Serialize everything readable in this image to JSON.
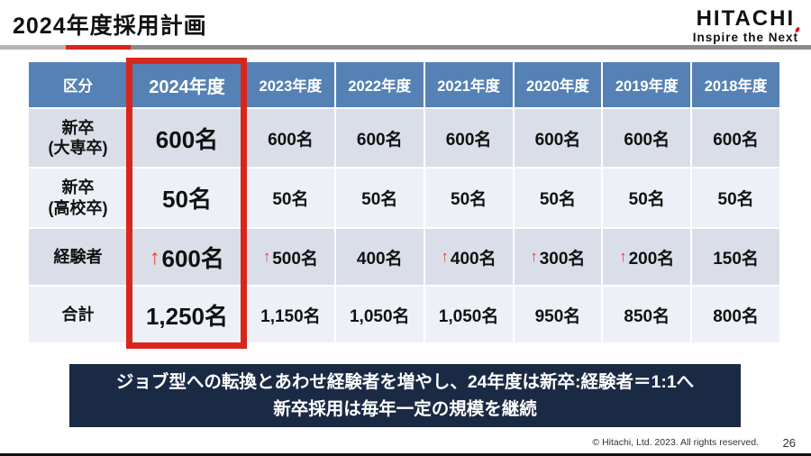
{
  "header": {
    "title": "2024年度採用計画",
    "logo_text": "HITACHI",
    "logo_tagline": "Inspire the Next"
  },
  "table": {
    "columns": [
      "区分",
      "2024年度",
      "2023年度",
      "2022年度",
      "2021年度",
      "2020年度",
      "2019年度",
      "2018年度"
    ],
    "highlighted_column": "2024年度",
    "rows": [
      {
        "label_lines": [
          "新卒",
          "(大専卒)"
        ],
        "values": [
          {
            "text": "600名",
            "arrow": false
          },
          {
            "text": "600名",
            "arrow": false
          },
          {
            "text": "600名",
            "arrow": false
          },
          {
            "text": "600名",
            "arrow": false
          },
          {
            "text": "600名",
            "arrow": false
          },
          {
            "text": "600名",
            "arrow": false
          },
          {
            "text": "600名",
            "arrow": false
          }
        ]
      },
      {
        "label_lines": [
          "新卒",
          "(高校卒)"
        ],
        "values": [
          {
            "text": "50名",
            "arrow": false
          },
          {
            "text": "50名",
            "arrow": false
          },
          {
            "text": "50名",
            "arrow": false
          },
          {
            "text": "50名",
            "arrow": false
          },
          {
            "text": "50名",
            "arrow": false
          },
          {
            "text": "50名",
            "arrow": false
          },
          {
            "text": "50名",
            "arrow": false
          }
        ]
      },
      {
        "label_lines": [
          "経験者"
        ],
        "values": [
          {
            "text": "600名",
            "arrow": true
          },
          {
            "text": "500名",
            "arrow": true
          },
          {
            "text": "400名",
            "arrow": false
          },
          {
            "text": "400名",
            "arrow": true
          },
          {
            "text": "300名",
            "arrow": true
          },
          {
            "text": "200名",
            "arrow": true
          },
          {
            "text": "150名",
            "arrow": false
          }
        ]
      },
      {
        "label_lines": [
          "合計"
        ],
        "values": [
          {
            "text": "1,250名",
            "arrow": false
          },
          {
            "text": "1,150名",
            "arrow": false
          },
          {
            "text": "1,050名",
            "arrow": false
          },
          {
            "text": "1,050名",
            "arrow": false
          },
          {
            "text": "950名",
            "arrow": false
          },
          {
            "text": "850名",
            "arrow": false
          },
          {
            "text": "800名",
            "arrow": false
          }
        ]
      }
    ]
  },
  "banner": {
    "line1": "ジョブ型への転換とあわせ経験者を増やし、24年度は新卒:経験者＝1:1へ",
    "line2": "新卒採用は毎年一定の規模を継続"
  },
  "footer": {
    "copyright": "© Hitachi, Ltd. 2023.  All rights reserved.",
    "page_number": "26"
  },
  "icons": {
    "up_arrow": "↑"
  },
  "colors": {
    "header_bg": "#5681B4",
    "row_band_dark": "#D9DEE9",
    "row_band_light": "#EDF1F7",
    "highlight_border": "#D9261C",
    "arrow_red": "#E03A2F",
    "banner_bg": "#1B2A44",
    "logo_accent_red": "#E60027"
  }
}
